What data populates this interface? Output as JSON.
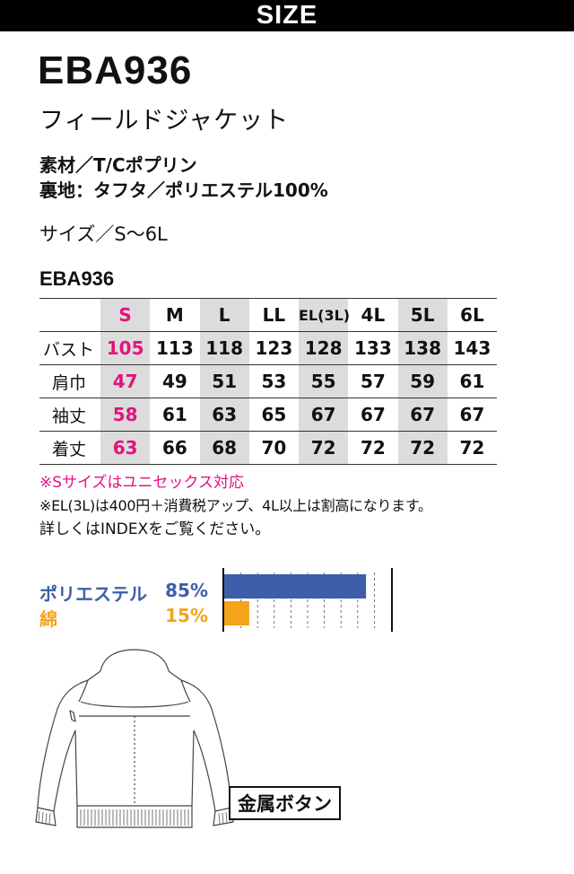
{
  "header": {
    "title": "SIZE"
  },
  "product": {
    "model": "EBA936",
    "name": "フィールドジャケット",
    "material": "素材／T/Cポプリン",
    "lining": "裏地：タフタ／ポリエステル100%",
    "sizes": "サイズ／S～6L"
  },
  "size_table": {
    "title": "EBA936",
    "columns": [
      "S",
      "M",
      "L",
      "LL",
      "EL(3L)",
      "4L",
      "5L",
      "6L"
    ],
    "rows": [
      {
        "label": "バスト",
        "values": [
          "105",
          "113",
          "118",
          "123",
          "128",
          "133",
          "138",
          "143"
        ]
      },
      {
        "label": "肩巾",
        "values": [
          "47",
          "49",
          "51",
          "53",
          "55",
          "57",
          "59",
          "61"
        ]
      },
      {
        "label": "袖丈",
        "values": [
          "58",
          "61",
          "63",
          "65",
          "67",
          "67",
          "67",
          "67"
        ]
      },
      {
        "label": "着丈",
        "values": [
          "63",
          "66",
          "68",
          "70",
          "72",
          "72",
          "72",
          "72"
        ]
      }
    ]
  },
  "notes": {
    "unisex": "※Sサイズはユニセックス対応",
    "price": "※EL(3L)は400円＋消費税アップ、4L以上は割高になります。",
    "index": "詳しくはINDEXをご覧ください。"
  },
  "fabric": {
    "items": [
      {
        "name": "ポリエステル",
        "percent_label": "85%",
        "percent": 85,
        "color": "#3e5eaa"
      },
      {
        "name": "綿",
        "percent_label": "15%",
        "percent": 15,
        "color": "#f5a31a"
      }
    ]
  },
  "illustration": {
    "button_label": "金属ボタン"
  },
  "colors": {
    "accent_pink": "#e4127f",
    "gray_column": "#dcdcdc"
  }
}
